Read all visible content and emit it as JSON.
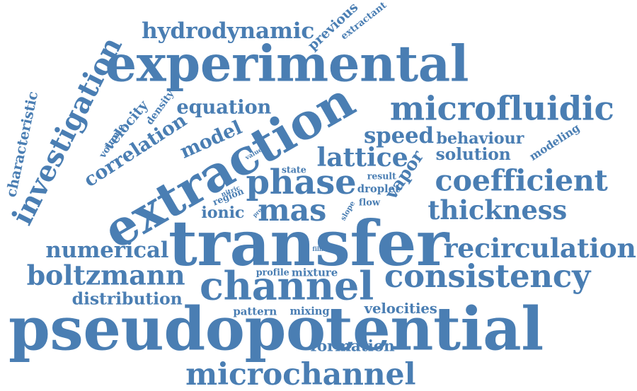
{
  "colors": {
    "word": "#4a7eb3",
    "background": "#ffffff"
  },
  "words": [
    "pseudopotential",
    "transfer",
    "extraction",
    "experimental",
    "investigation",
    "channel",
    "microfluidic",
    "coefficient",
    "consistency",
    "phase",
    "boltzmann",
    "recirculation",
    "microchannel",
    "mas",
    "lattice",
    "thickness",
    "numerical",
    "hydrodynamic",
    "model",
    "correlation",
    "characteristic",
    "equation",
    "speed",
    "vapor",
    "distribution",
    "behaviour",
    "solution",
    "extractant",
    "formation",
    "velocities",
    "modeling",
    "previous",
    "ionic",
    "velocity",
    "density",
    "volume",
    "droplet",
    "state",
    "pattern",
    "mixing",
    "mixture",
    "profile",
    "region",
    "result",
    "flow",
    "nitric",
    "value",
    "slope",
    "proc",
    "film"
  ]
}
